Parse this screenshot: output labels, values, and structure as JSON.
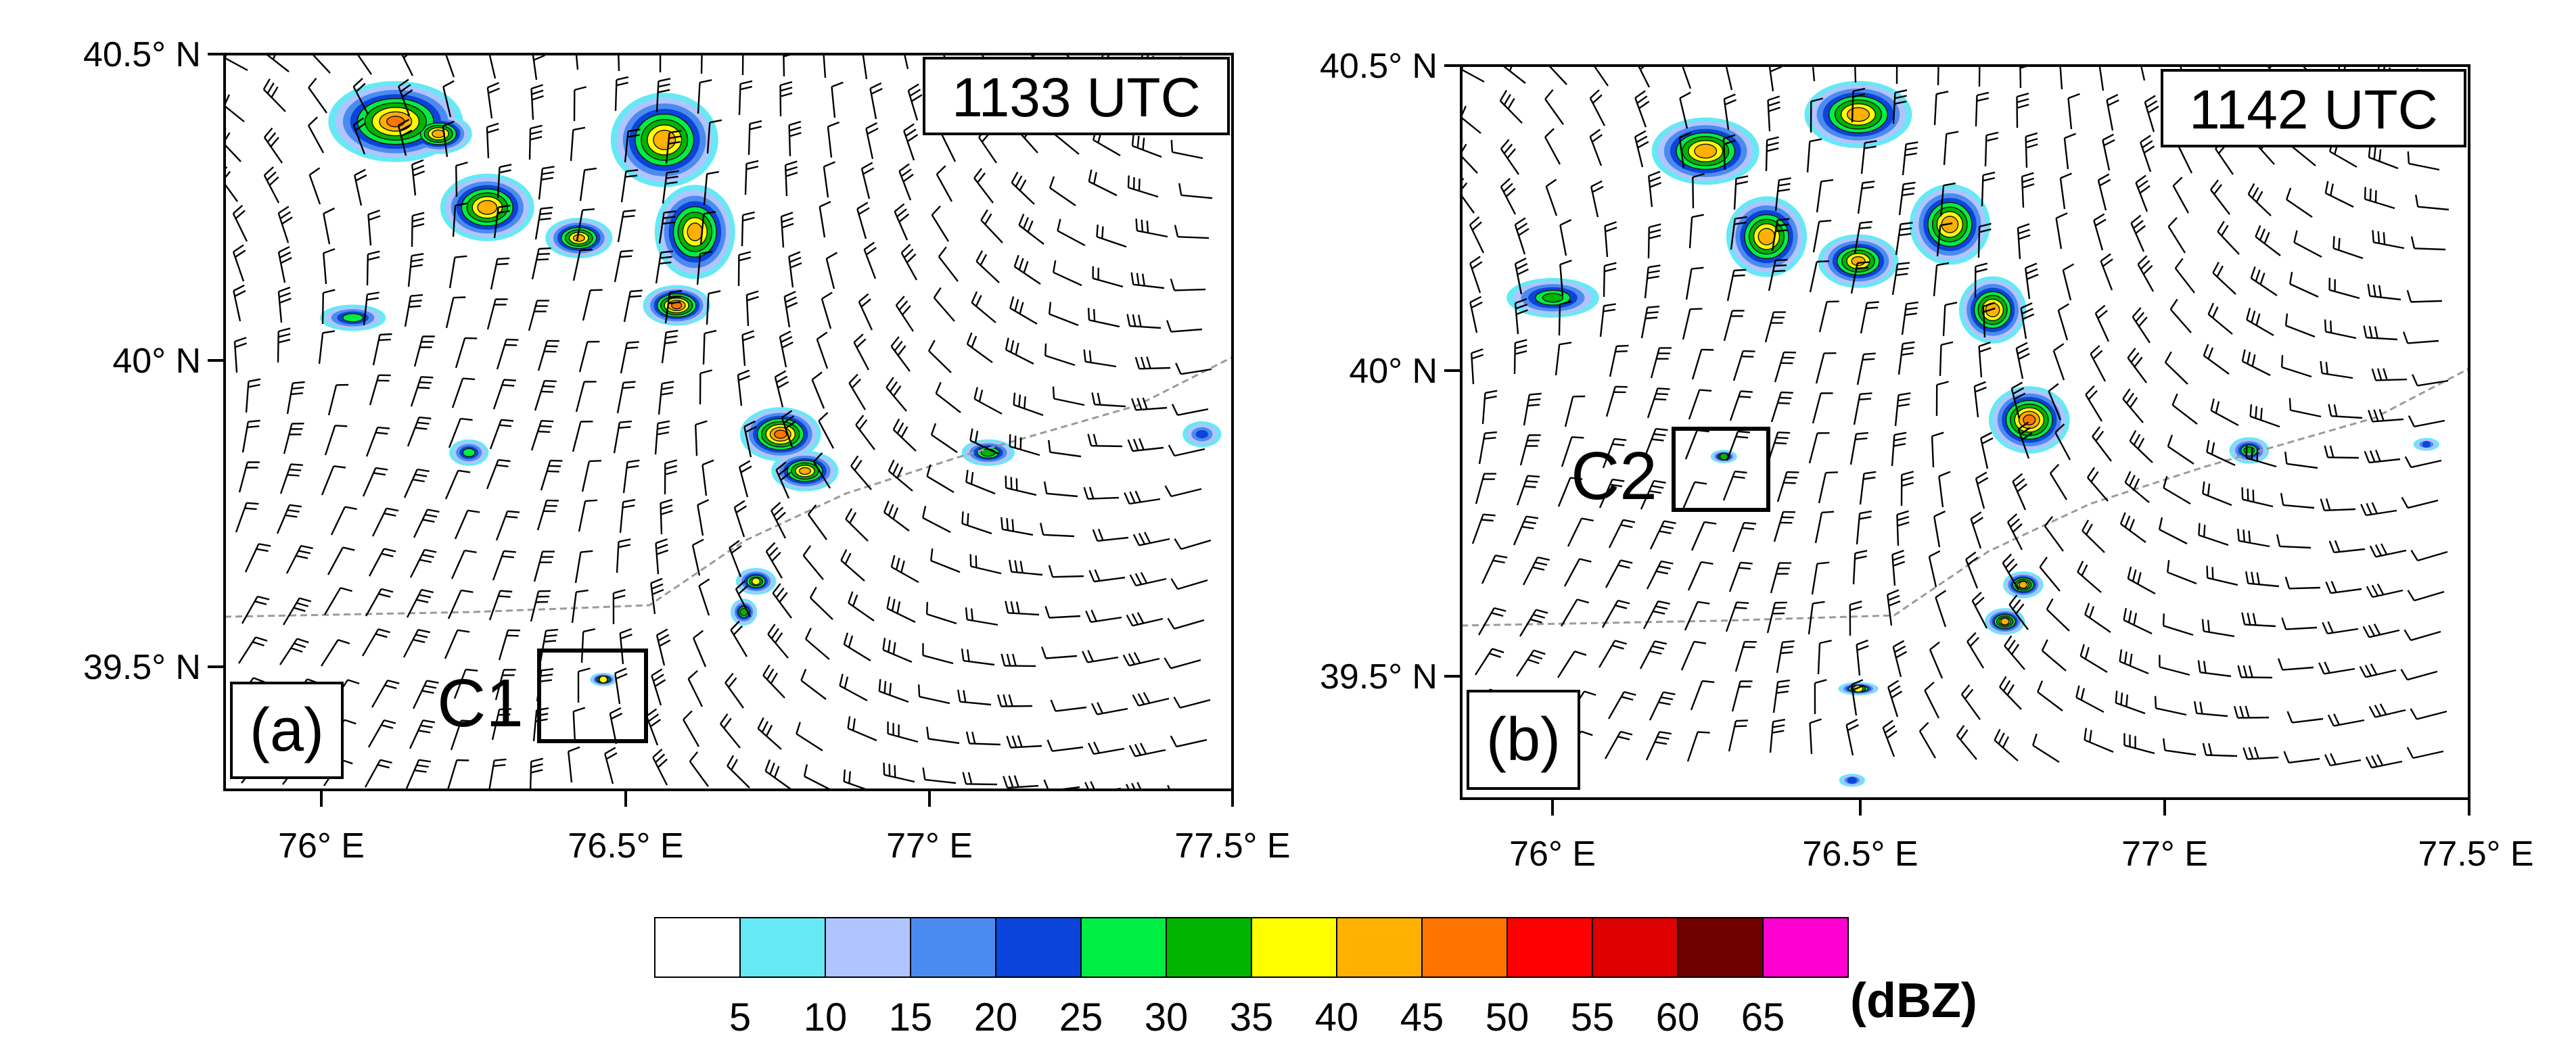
{
  "panels": [
    {
      "id": "a",
      "label": "(a)",
      "time": "1133 UTC",
      "box_label": "C1",
      "lat_labels": [
        "40.5° N",
        "40° N",
        "39.5° N"
      ],
      "lon_labels": [
        "76° E",
        "76.5° E",
        "77° E",
        "77.5° E"
      ],
      "box_region": {
        "lon": [
          76.37,
          76.55
        ],
        "lat": [
          39.37,
          39.53
        ]
      },
      "cells": [
        {
          "lon": 76.13,
          "lat": 40.39,
          "peak": 45,
          "rx": 0.1,
          "ry": 0.06
        },
        {
          "lon": 76.2,
          "lat": 40.37,
          "peak": 42,
          "rx": 0.05,
          "ry": 0.03
        },
        {
          "lon": 76.28,
          "lat": 40.25,
          "peak": 43,
          "rx": 0.07,
          "ry": 0.05
        },
        {
          "lon": 76.43,
          "lat": 40.2,
          "peak": 41,
          "rx": 0.05,
          "ry": 0.03
        },
        {
          "lon": 76.57,
          "lat": 40.36,
          "peak": 43,
          "rx": 0.08,
          "ry": 0.07
        },
        {
          "lon": 76.62,
          "lat": 40.21,
          "peak": 42,
          "rx": 0.06,
          "ry": 0.07
        },
        {
          "lon": 76.59,
          "lat": 40.09,
          "peak": 46,
          "rx": 0.05,
          "ry": 0.03
        },
        {
          "lon": 76.76,
          "lat": 39.88,
          "peak": 46,
          "rx": 0.06,
          "ry": 0.04
        },
        {
          "lon": 76.8,
          "lat": 39.82,
          "peak": 41,
          "rx": 0.05,
          "ry": 0.03
        },
        {
          "lon": 77.1,
          "lat": 39.85,
          "peak": 33,
          "rx": 0.04,
          "ry": 0.02
        },
        {
          "lon": 76.72,
          "lat": 39.64,
          "peak": 36,
          "rx": 0.03,
          "ry": 0.02
        },
        {
          "lon": 76.7,
          "lat": 39.59,
          "peak": 33,
          "rx": 0.02,
          "ry": 0.02
        },
        {
          "lon": 76.47,
          "lat": 39.48,
          "peak": 38,
          "rx": 0.02,
          "ry": 0.01
        },
        {
          "lon": 76.06,
          "lat": 40.07,
          "peak": 28,
          "rx": 0.05,
          "ry": 0.02
        },
        {
          "lon": 76.25,
          "lat": 39.85,
          "peak": 28,
          "rx": 0.03,
          "ry": 0.02
        },
        {
          "lon": 77.45,
          "lat": 39.88,
          "peak": 21,
          "rx": 0.03,
          "ry": 0.02
        }
      ]
    },
    {
      "id": "b",
      "label": "(b)",
      "time": "1142 UTC",
      "box_label": "C2",
      "lat_labels": [
        "40.5° N",
        "40° N",
        "39.5° N"
      ],
      "lon_labels": [
        "76° E",
        "76.5° E",
        "77° E",
        "77.5° E"
      ],
      "box_region": {
        "lon": [
          76.2,
          76.35
        ],
        "lat": [
          39.78,
          39.91
        ]
      },
      "cells": [
        {
          "lon": 76.25,
          "lat": 40.36,
          "peak": 43,
          "rx": 0.08,
          "ry": 0.05
        },
        {
          "lon": 76.35,
          "lat": 40.22,
          "peak": 43,
          "rx": 0.06,
          "ry": 0.06
        },
        {
          "lon": 76.5,
          "lat": 40.18,
          "peak": 41,
          "rx": 0.06,
          "ry": 0.04
        },
        {
          "lon": 76.5,
          "lat": 40.42,
          "peak": 43,
          "rx": 0.08,
          "ry": 0.05
        },
        {
          "lon": 76.65,
          "lat": 40.24,
          "peak": 43,
          "rx": 0.06,
          "ry": 0.06
        },
        {
          "lon": 76.72,
          "lat": 40.1,
          "peak": 43,
          "rx": 0.05,
          "ry": 0.05
        },
        {
          "lon": 76.78,
          "lat": 39.92,
          "peak": 46,
          "rx": 0.06,
          "ry": 0.05
        },
        {
          "lon": 76.77,
          "lat": 39.65,
          "peak": 41,
          "rx": 0.03,
          "ry": 0.02
        },
        {
          "lon": 76.74,
          "lat": 39.59,
          "peak": 41,
          "rx": 0.03,
          "ry": 0.02
        },
        {
          "lon": 76.28,
          "lat": 39.86,
          "peak": 33,
          "rx": 0.02,
          "ry": 0.01
        },
        {
          "lon": 76.5,
          "lat": 39.48,
          "peak": 38,
          "rx": 0.03,
          "ry": 0.01
        },
        {
          "lon": 77.14,
          "lat": 39.87,
          "peak": 33,
          "rx": 0.03,
          "ry": 0.02
        },
        {
          "lon": 77.43,
          "lat": 39.88,
          "peak": 21,
          "rx": 0.02,
          "ry": 0.01
        },
        {
          "lon": 76.0,
          "lat": 40.12,
          "peak": 31,
          "rx": 0.07,
          "ry": 0.03
        },
        {
          "lon": 76.49,
          "lat": 39.33,
          "peak": 23,
          "rx": 0.02,
          "ry": 0.01
        }
      ]
    }
  ],
  "colorbar": {
    "unit_label": "(dBZ)",
    "tick_labels": [
      "5",
      "10",
      "15",
      "20",
      "25",
      "30",
      "35",
      "40",
      "45",
      "50",
      "55",
      "60",
      "65"
    ],
    "colors": [
      "#ffffff",
      "#66e8f5",
      "#b0c4ff",
      "#4b8bef",
      "#0a44da",
      "#00ee44",
      "#00b400",
      "#ffff00",
      "#ffb000",
      "#ff7400",
      "#ff0000",
      "#dc0000",
      "#6e0000",
      "#ff00d0"
    ]
  }
}
